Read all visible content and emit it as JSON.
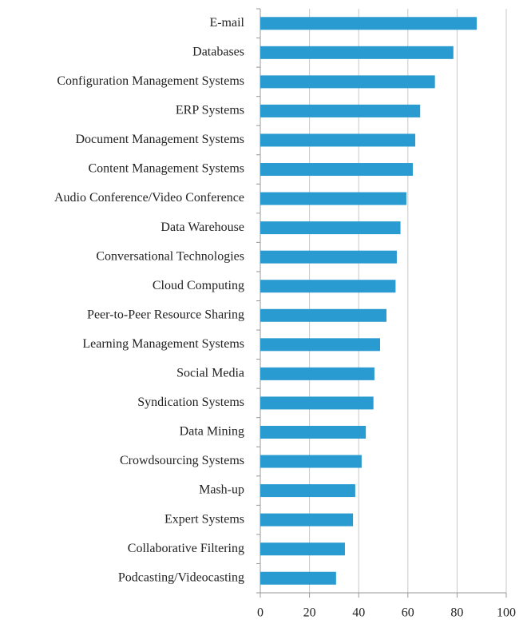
{
  "chart_data": {
    "type": "barh",
    "categories": [
      "E-mail",
      "Databases",
      "Configuration Management Systems",
      "ERP Systems",
      "Document Management Systems",
      "Content Management Systems",
      "Audio Conference/Video Conference",
      "Data Warehouse",
      "Conversational Technologies",
      "Cloud Computing",
      "Peer-to-Peer Resource Sharing",
      "Learning Management Systems",
      "Social Media",
      "Syndication Systems",
      "Data Mining",
      "Crowdsourcing Systems",
      "Mash-up",
      "Expert Systems",
      "Collaborative Filtering",
      "Podcasting/Videocasting"
    ],
    "values": [
      88,
      78.5,
      71,
      65,
      63,
      62,
      59.4,
      57,
      55.5,
      55,
      51.3,
      48.7,
      46.4,
      46,
      42.9,
      41.2,
      38.6,
      37.7,
      34.4,
      30.8
    ],
    "color": "#2a9bd0",
    "xlim": [
      0,
      100
    ],
    "xticks": [
      0,
      20,
      40,
      60,
      80,
      100
    ],
    "grid": true
  }
}
